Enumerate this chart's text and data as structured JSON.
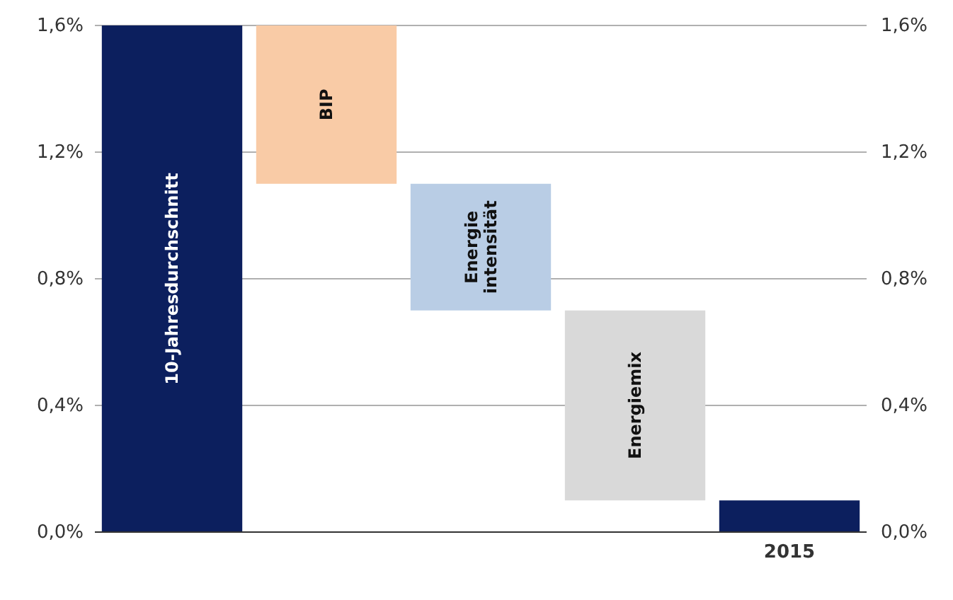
{
  "chart_data": {
    "type": "bar",
    "categories": [
      "10-Jahresdurchschnitt",
      "BIP",
      "Energie intensität",
      "Energiemix",
      "2015"
    ],
    "values": [
      1.6,
      0.5,
      0.4,
      0.6,
      0.1
    ],
    "base": [
      0,
      1.1,
      0.7,
      0.1,
      0
    ],
    "colors": [
      "#0c1f5e",
      "#f9cba6",
      "#b9cde5",
      "#d9d9d9",
      "#0c1f5e"
    ],
    "ylim": [
      0,
      1.6
    ],
    "yticks": [
      {
        "value": 0,
        "label": "0,0%"
      },
      {
        "value": 0.4,
        "label": "0,4%"
      },
      {
        "value": 0.8,
        "label": "0,8%"
      },
      {
        "value": 1.2,
        "label": "1,2%"
      },
      {
        "value": 1.6,
        "label": "1,6%"
      }
    ],
    "y2lim": [
      0,
      1.6
    ],
    "y2ticks": [
      {
        "value": 0,
        "label": "0,0%"
      },
      {
        "value": 0.4,
        "label": "0,4%"
      },
      {
        "value": 0.8,
        "label": "0,8%"
      },
      {
        "value": 1.2,
        "label": "1,2%"
      },
      {
        "value": 1.6,
        "label": "1,6%"
      }
    ],
    "grid": "y"
  }
}
